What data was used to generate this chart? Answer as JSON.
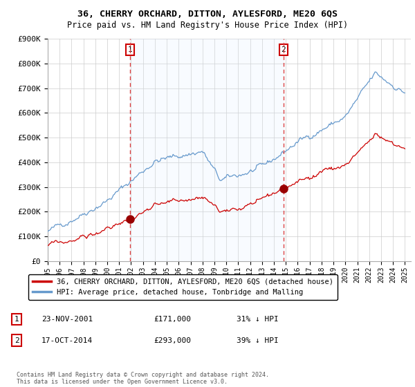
{
  "title": "36, CHERRY ORCHARD, DITTON, AYLESFORD, ME20 6QS",
  "subtitle": "Price paid vs. HM Land Registry's House Price Index (HPI)",
  "ylabel_ticks": [
    "£0",
    "£100K",
    "£200K",
    "£300K",
    "£400K",
    "£500K",
    "£600K",
    "£700K",
    "£800K",
    "£900K"
  ],
  "ylim": [
    0,
    900000
  ],
  "xlim_start": 1995.0,
  "xlim_end": 2025.5,
  "legend_property_label": "36, CHERRY ORCHARD, DITTON, AYLESFORD, ME20 6QS (detached house)",
  "legend_hpi_label": "HPI: Average price, detached house, Tonbridge and Malling",
  "sale1_year": 2001.9,
  "sale1_price": 171000,
  "sale1_label": "1",
  "sale1_date": "23-NOV-2001",
  "sale1_text": "£171,000",
  "sale1_hpi": "31% ↓ HPI",
  "sale2_year": 2014.8,
  "sale2_price": 293000,
  "sale2_label": "2",
  "sale2_date": "17-OCT-2014",
  "sale2_text": "£293,000",
  "sale2_hpi": "39% ↓ HPI",
  "property_color": "#cc0000",
  "hpi_color": "#6699cc",
  "vline_color": "#dd4444",
  "shade_color": "#ddeeff",
  "marker_color": "#990000",
  "footnote": "Contains HM Land Registry data © Crown copyright and database right 2024.\nThis data is licensed under the Open Government Licence v3.0."
}
